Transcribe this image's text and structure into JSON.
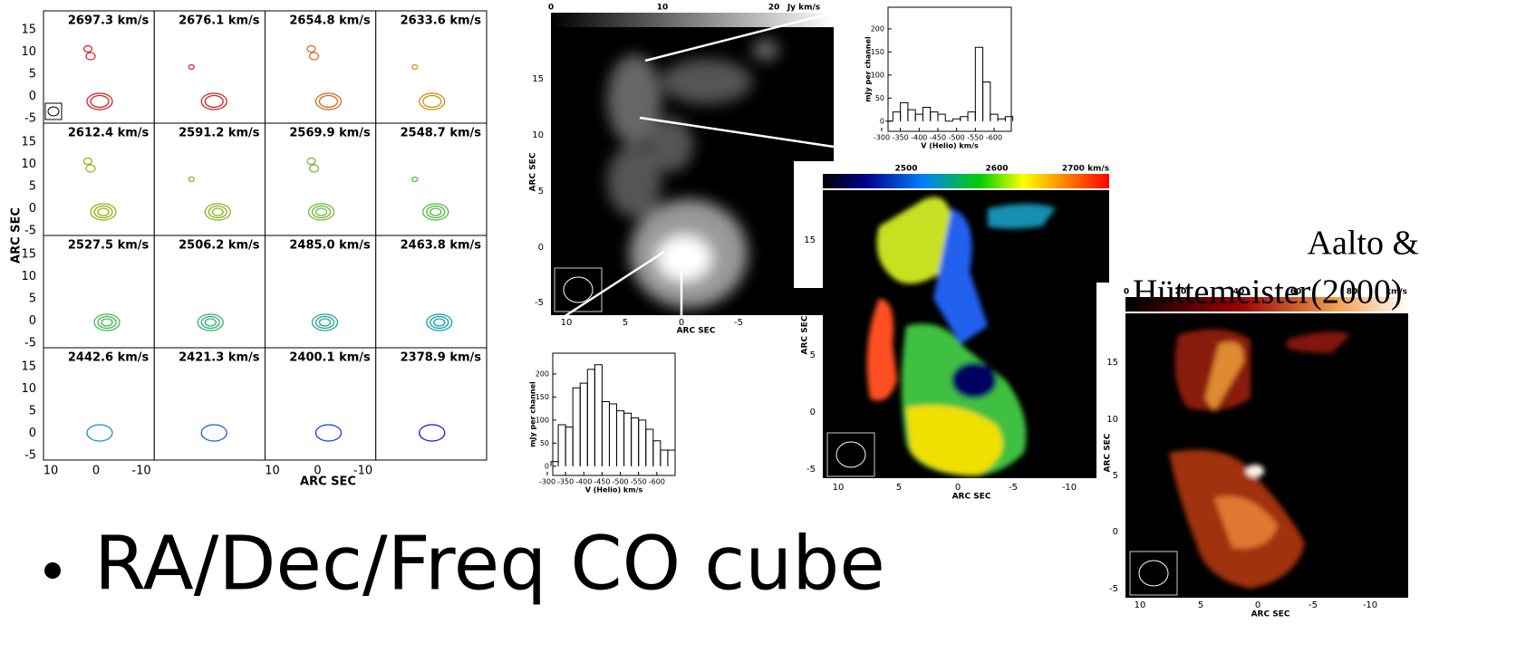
{
  "slide": {
    "bullet": "RA/Dec/Freq CO cube",
    "citation_line1": "Aalto &",
    "citation_line2": "Hüttemeister(2000)"
  },
  "channel_maps": {
    "xlabel": "ARC SEC",
    "ylabel": "ARC SEC",
    "yticks": [
      15,
      10,
      5,
      0,
      -5
    ],
    "xticks": [
      10,
      0,
      -10
    ],
    "panels": [
      {
        "label": "2697.3 km/s",
        "color": "#d62020"
      },
      {
        "label": "2676.1 km/s",
        "color": "#c8281e"
      },
      {
        "label": "2654.8 km/s",
        "color": "#d2691e"
      },
      {
        "label": "2633.6 km/s",
        "color": "#c89010"
      },
      {
        "label": "2612.4 km/s",
        "color": "#9aaa10"
      },
      {
        "label": "2591.2 km/s",
        "color": "#8cb020"
      },
      {
        "label": "2569.9 km/s",
        "color": "#6cb830"
      },
      {
        "label": "2548.7 km/s",
        "color": "#50b840"
      },
      {
        "label": "2527.5 km/s",
        "color": "#40b850"
      },
      {
        "label": "2506.2 km/s",
        "color": "#30b070"
      },
      {
        "label": "2485.0 km/s",
        "color": "#20a890"
      },
      {
        "label": "2463.8 km/s",
        "color": "#10a0a8"
      },
      {
        "label": "2442.6 km/s",
        "color": "#1890c0"
      },
      {
        "label": "2421.3 km/s",
        "color": "#1860d0"
      },
      {
        "label": "2400.1 km/s",
        "color": "#1040d0"
      },
      {
        "label": "2378.9 km/s",
        "color": "#1020c8"
      }
    ]
  },
  "maps": [
    {
      "colorbar": [
        0,
        10,
        20,
        "Jy km/s"
      ],
      "xticks": [
        10,
        5,
        0,
        -5
      ],
      "yticks": [
        15,
        10,
        5,
        0,
        -5
      ],
      "xlabel": "ARC SEC",
      "ylabel": "ARC SEC"
    },
    {
      "colorbar": [
        2500,
        2600,
        "2700 km/s"
      ],
      "xticks": [
        10,
        5,
        0,
        -5,
        -10
      ],
      "yticks": [
        15,
        10,
        5,
        0,
        -5
      ],
      "xlabel": "ARC SEC",
      "ylabel": "ARC SEC"
    },
    {
      "colorbar": [
        0,
        20,
        40,
        60,
        80,
        "km/s"
      ],
      "xticks": [
        10,
        5,
        0,
        -5,
        -10
      ],
      "yticks": [
        15,
        10,
        5,
        0,
        -5
      ],
      "xlabel": "ARC SEC",
      "ylabel": "ARC SEC"
    }
  ],
  "spectra": [
    {
      "xlabel": "V (Helio) km/s",
      "ylabel": "mJy per channel",
      "xlim": [
        -317,
        -646
      ],
      "ylim": [
        -22,
        247
      ],
      "xticks": [
        -300,
        -350,
        -400,
        -450,
        -500,
        -550,
        -600
      ],
      "yticks": [
        0,
        50,
        100,
        150,
        200
      ],
      "bins": [
        -310,
        -330,
        -350,
        -370,
        -390,
        -410,
        -430,
        -450,
        -470,
        -490,
        -510,
        -530,
        -550,
        -570,
        -590,
        -610,
        -630,
        -650
      ],
      "values": [
        0,
        20,
        40,
        25,
        15,
        30,
        20,
        15,
        0,
        5,
        10,
        20,
        160,
        85,
        15,
        5,
        10
      ]
    },
    {
      "xlabel": "V (Helio) km/s",
      "ylabel": "mJy per channel",
      "xlim": [
        -315,
        -650
      ],
      "ylim": [
        -20,
        245
      ],
      "xticks": [
        -300,
        -350,
        -400,
        -450,
        -500,
        -550,
        -600
      ],
      "yticks": [
        0,
        50,
        100,
        150,
        200
      ],
      "bins": [
        -310,
        -330,
        -350,
        -370,
        -390,
        -410,
        -430,
        -450,
        -470,
        -490,
        -510,
        -530,
        -550,
        -570,
        -590,
        -610,
        -630,
        -650
      ],
      "values": [
        10,
        90,
        85,
        170,
        180,
        210,
        220,
        140,
        135,
        120,
        115,
        105,
        100,
        80,
        55,
        35,
        35
      ]
    }
  ]
}
